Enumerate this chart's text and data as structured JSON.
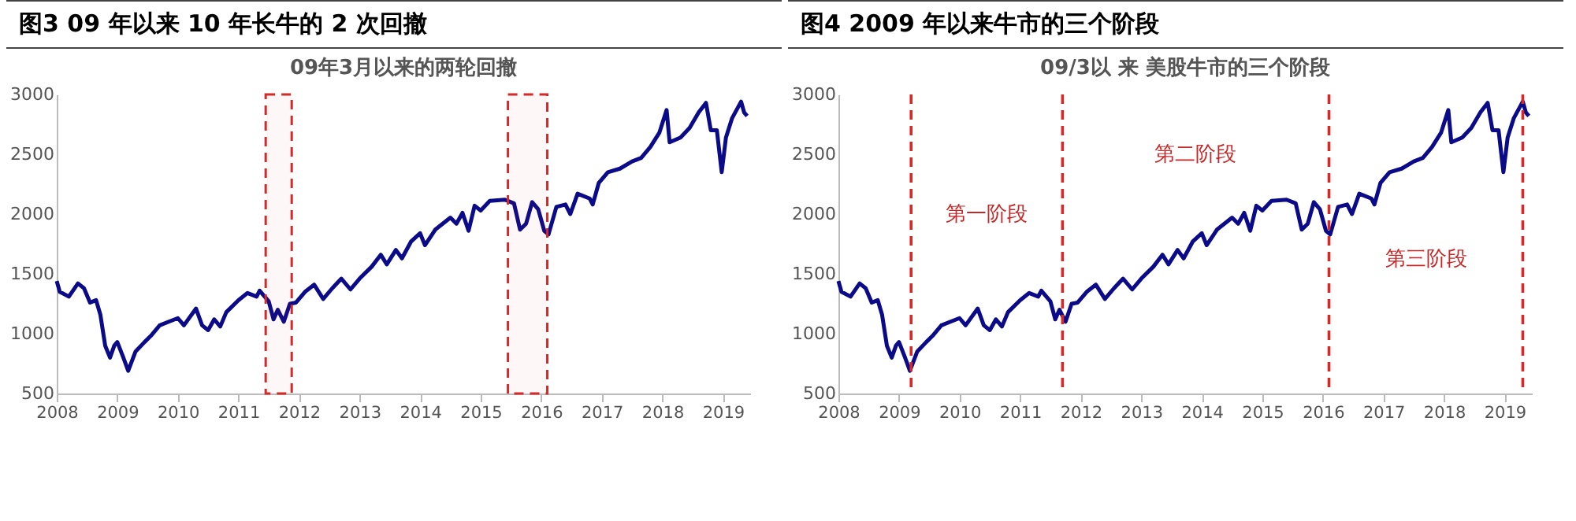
{
  "chart_data": [
    {
      "type": "line",
      "title": "图3  09 年以来 10 年长牛的 2 次回撤",
      "subtitle": "09年3月以来的两轮回撤",
      "xlim": [
        2008,
        2019.45
      ],
      "xticks": [
        2008,
        2009,
        2010,
        2011,
        2012,
        2013,
        2014,
        2015,
        2016,
        2017,
        2018,
        2019
      ],
      "ylim": [
        500,
        3000
      ],
      "yticks": [
        500,
        1000,
        1500,
        2000,
        2500,
        3000
      ],
      "grid": false,
      "line_style": "solid",
      "x": [
        2008.0,
        2008.05,
        2008.2,
        2008.35,
        2008.45,
        2008.55,
        2008.65,
        2008.72,
        2008.8,
        2008.88,
        2008.95,
        2009.0,
        2009.1,
        2009.18,
        2009.3,
        2009.45,
        2009.55,
        2009.7,
        2009.85,
        2010.0,
        2010.1,
        2010.3,
        2010.4,
        2010.5,
        2010.6,
        2010.7,
        2010.8,
        2011.0,
        2011.15,
        2011.3,
        2011.35,
        2011.5,
        2011.58,
        2011.65,
        2011.75,
        2011.85,
        2011.95,
        2012.1,
        2012.25,
        2012.4,
        2012.55,
        2012.7,
        2012.85,
        2013.0,
        2013.2,
        2013.35,
        2013.45,
        2013.6,
        2013.7,
        2013.85,
        2014.0,
        2014.08,
        2014.25,
        2014.5,
        2014.6,
        2014.7,
        2014.8,
        2014.9,
        2015.0,
        2015.15,
        2015.4,
        2015.55,
        2015.65,
        2015.75,
        2015.85,
        2015.95,
        2016.05,
        2016.12,
        2016.25,
        2016.4,
        2016.48,
        2016.6,
        2016.8,
        2016.85,
        2016.95,
        2017.1,
        2017.3,
        2017.5,
        2017.65,
        2017.8,
        2017.95,
        2018.07,
        2018.12,
        2018.3,
        2018.45,
        2018.6,
        2018.72,
        2018.8,
        2018.9,
        2018.98,
        2019.05,
        2019.15,
        2019.3,
        2019.35,
        2019.4
      ],
      "series": [
        {
          "color": "#0b0b8a",
          "values": [
            1440,
            1350,
            1310,
            1420,
            1380,
            1260,
            1280,
            1160,
            900,
            800,
            900,
            930,
            800,
            690,
            850,
            930,
            980,
            1070,
            1100,
            1130,
            1070,
            1210,
            1070,
            1030,
            1120,
            1060,
            1180,
            1280,
            1340,
            1310,
            1360,
            1270,
            1120,
            1200,
            1100,
            1250,
            1260,
            1350,
            1410,
            1290,
            1380,
            1460,
            1370,
            1460,
            1560,
            1660,
            1580,
            1700,
            1630,
            1770,
            1840,
            1740,
            1870,
            1970,
            1920,
            2010,
            1860,
            2070,
            2030,
            2110,
            2120,
            2090,
            1870,
            1920,
            2100,
            2040,
            1860,
            1830,
            2060,
            2080,
            2000,
            2170,
            2130,
            2080,
            2260,
            2350,
            2380,
            2440,
            2470,
            2560,
            2680,
            2870,
            2600,
            2640,
            2720,
            2850,
            2930,
            2700,
            2700,
            2350,
            2640,
            2800,
            2940,
            2850,
            2820
          ]
        }
      ],
      "bands": [
        {
          "axis": "x",
          "from": 2011.45,
          "to": 2011.88,
          "color": "#d42a2a"
        },
        {
          "axis": "x",
          "from": 2015.45,
          "to": 2016.1,
          "color": "#d42a2a"
        }
      ]
    },
    {
      "type": "line",
      "title": "图4  2009 年以来牛市的三个阶段",
      "subtitle": "09/3以 来 美股牛市的三个阶段",
      "xlim": [
        2008,
        2019.45
      ],
      "xticks": [
        2008,
        2009,
        2010,
        2011,
        2012,
        2013,
        2014,
        2015,
        2016,
        2017,
        2018,
        2019
      ],
      "ylim": [
        500,
        3000
      ],
      "yticks": [
        500,
        1000,
        1500,
        2000,
        2500,
        3000
      ],
      "grid": false,
      "line_style": "solid",
      "x": [
        2008.0,
        2008.05,
        2008.2,
        2008.35,
        2008.45,
        2008.55,
        2008.65,
        2008.72,
        2008.8,
        2008.88,
        2008.95,
        2009.0,
        2009.1,
        2009.18,
        2009.3,
        2009.45,
        2009.55,
        2009.7,
        2009.85,
        2010.0,
        2010.1,
        2010.3,
        2010.4,
        2010.5,
        2010.6,
        2010.7,
        2010.8,
        2011.0,
        2011.15,
        2011.3,
        2011.35,
        2011.5,
        2011.58,
        2011.65,
        2011.75,
        2011.85,
        2011.95,
        2012.1,
        2012.25,
        2012.4,
        2012.55,
        2012.7,
        2012.85,
        2013.0,
        2013.2,
        2013.35,
        2013.45,
        2013.6,
        2013.7,
        2013.85,
        2014.0,
        2014.08,
        2014.25,
        2014.5,
        2014.6,
        2014.7,
        2014.8,
        2014.9,
        2015.0,
        2015.15,
        2015.4,
        2015.55,
        2015.65,
        2015.75,
        2015.85,
        2015.95,
        2016.05,
        2016.12,
        2016.25,
        2016.4,
        2016.48,
        2016.6,
        2016.8,
        2016.85,
        2016.95,
        2017.1,
        2017.3,
        2017.5,
        2017.65,
        2017.8,
        2017.95,
        2018.07,
        2018.12,
        2018.3,
        2018.45,
        2018.6,
        2018.72,
        2018.8,
        2018.9,
        2018.98,
        2019.05,
        2019.15,
        2019.3,
        2019.35,
        2019.4
      ],
      "series": [
        {
          "color": "#0b0b8a",
          "values": [
            1440,
            1350,
            1310,
            1420,
            1380,
            1260,
            1280,
            1160,
            900,
            800,
            900,
            930,
            800,
            690,
            850,
            930,
            980,
            1070,
            1100,
            1130,
            1070,
            1210,
            1070,
            1030,
            1120,
            1060,
            1180,
            1280,
            1340,
            1310,
            1360,
            1270,
            1120,
            1200,
            1100,
            1250,
            1260,
            1350,
            1410,
            1290,
            1380,
            1460,
            1370,
            1460,
            1560,
            1660,
            1580,
            1700,
            1630,
            1770,
            1840,
            1740,
            1870,
            1970,
            1920,
            2010,
            1860,
            2070,
            2030,
            2110,
            2120,
            2090,
            1870,
            1920,
            2100,
            2040,
            1860,
            1830,
            2060,
            2080,
            2000,
            2170,
            2130,
            2080,
            2260,
            2350,
            2380,
            2440,
            2470,
            2560,
            2680,
            2870,
            2600,
            2640,
            2720,
            2850,
            2930,
            2700,
            2700,
            2350,
            2640,
            2800,
            2940,
            2850,
            2820
          ]
        }
      ],
      "ref_lines": [
        {
          "axis": "x",
          "value": 2009.2,
          "color": "#d42a2a",
          "line_style": "dashed"
        },
        {
          "axis": "x",
          "value": 2011.7,
          "color": "#d42a2a",
          "line_style": "dashed"
        },
        {
          "axis": "x",
          "value": 2016.1,
          "color": "#d42a2a",
          "line_style": "dashed"
        },
        {
          "axis": "x",
          "value": 2019.3,
          "color": "#d42a2a",
          "line_style": "dashed"
        }
      ],
      "annotations": [
        "第一阶段",
        "第二阶段",
        "第三阶段"
      ]
    }
  ]
}
